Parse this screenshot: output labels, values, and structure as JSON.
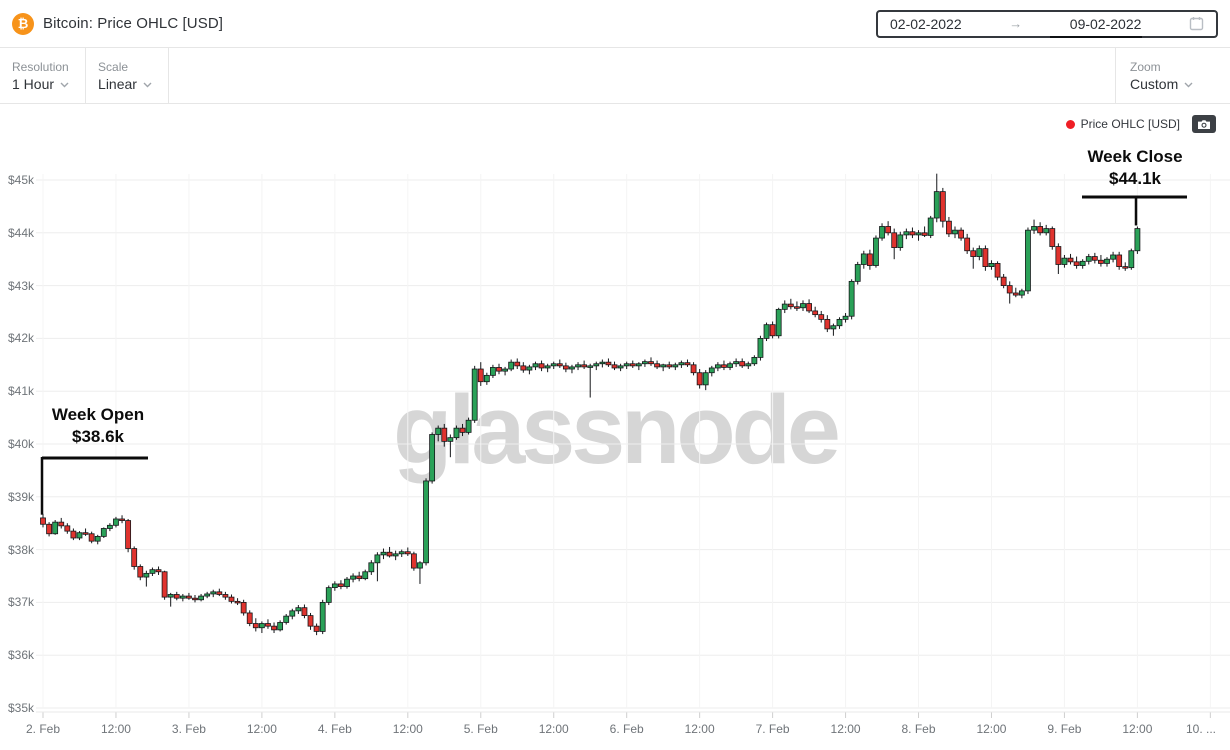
{
  "header": {
    "title": "Bitcoin: Price OHLC [USD]",
    "bitcoin_glyph": "₿",
    "date_range": {
      "start": "02-02-2022",
      "arrow": "→",
      "end": "09-02-2022"
    }
  },
  "toolbar": {
    "resolution": {
      "label": "Resolution",
      "value": "1 Hour"
    },
    "scale": {
      "label": "Scale",
      "value": "Linear"
    },
    "zoom": {
      "label": "Zoom",
      "value": "Custom"
    }
  },
  "legend": {
    "label": "Price OHLC [USD]",
    "dot_color": "#ef1e25"
  },
  "watermark": "glassnode",
  "annotations": {
    "week_open": {
      "line1": "Week Open",
      "line2": "$38.6k"
    },
    "week_close": {
      "line1": "Week Close",
      "line2": "$44.1k"
    }
  },
  "chart_data": {
    "type": "candlestick",
    "title": "Price OHLC [USD]",
    "asset": "Bitcoin",
    "currency": "USD",
    "resolution": "1 Hour",
    "scale": "Linear",
    "week_open_usd_k": 38.6,
    "week_close_usd_k": 44.1,
    "peak_usd_k": 45.1,
    "low_usd_k": 36.4,
    "grid": "horizontal + faint vertical",
    "legend_position": "top-right",
    "colors": {
      "up": "#2aa158",
      "down": "#e0332e",
      "outline": "#15171a"
    },
    "y_axis": {
      "labels": [
        "$45k",
        "$44k",
        "$43k",
        "$42k",
        "$41k",
        "$40k",
        "$39k",
        "$38k",
        "$37k",
        "$36k",
        "$35k"
      ],
      "min_k": 35,
      "max_k": 45
    },
    "x_axis": {
      "labels": [
        "2. Feb",
        "12:00",
        "3. Feb",
        "12:00",
        "4. Feb",
        "12:00",
        "5. Feb",
        "12:00",
        "6. Feb",
        "12:00",
        "7. Feb",
        "12:00",
        "8. Feb",
        "12:00",
        "9. Feb",
        "12:00",
        "10. ..."
      ],
      "start": "2. Feb 00:00",
      "interval_hours": 1
    },
    "candles_unit": "USD thousands, [open, high, low, close] per hour",
    "candles": [
      [
        38.6,
        38.68,
        38.42,
        38.48
      ],
      [
        38.48,
        38.52,
        38.25,
        38.3
      ],
      [
        38.3,
        38.56,
        38.28,
        38.52
      ],
      [
        38.52,
        38.6,
        38.4,
        38.45
      ],
      [
        38.45,
        38.5,
        38.3,
        38.35
      ],
      [
        38.35,
        38.4,
        38.18,
        38.22
      ],
      [
        38.22,
        38.35,
        38.18,
        38.32
      ],
      [
        38.32,
        38.4,
        38.26,
        38.3
      ],
      [
        38.3,
        38.34,
        38.12,
        38.16
      ],
      [
        38.16,
        38.28,
        38.1,
        38.25
      ],
      [
        38.25,
        38.42,
        38.22,
        38.4
      ],
      [
        38.4,
        38.5,
        38.35,
        38.46
      ],
      [
        38.46,
        38.62,
        38.42,
        38.58
      ],
      [
        38.58,
        38.65,
        38.5,
        38.55
      ],
      [
        38.55,
        38.58,
        37.95,
        38.02
      ],
      [
        38.02,
        38.06,
        37.62,
        37.68
      ],
      [
        37.68,
        37.72,
        37.42,
        37.48
      ],
      [
        37.48,
        37.6,
        37.3,
        37.55
      ],
      [
        37.55,
        37.66,
        37.5,
        37.62
      ],
      [
        37.62,
        37.68,
        37.52,
        37.58
      ],
      [
        37.58,
        37.6,
        37.05,
        37.1
      ],
      [
        37.1,
        37.18,
        36.92,
        37.15
      ],
      [
        37.15,
        37.2,
        37.04,
        37.08
      ],
      [
        37.08,
        37.16,
        37.02,
        37.12
      ],
      [
        37.12,
        37.18,
        37.05,
        37.08
      ],
      [
        37.08,
        37.14,
        37.0,
        37.05
      ],
      [
        37.05,
        37.16,
        37.02,
        37.12
      ],
      [
        37.12,
        37.2,
        37.08,
        37.16
      ],
      [
        37.16,
        37.24,
        37.1,
        37.2
      ],
      [
        37.2,
        37.26,
        37.12,
        37.15
      ],
      [
        37.15,
        37.2,
        37.05,
        37.1
      ],
      [
        37.1,
        37.15,
        36.98,
        37.02
      ],
      [
        37.02,
        37.08,
        36.95,
        37.0
      ],
      [
        37.0,
        37.05,
        36.75,
        36.8
      ],
      [
        36.8,
        36.85,
        36.55,
        36.6
      ],
      [
        36.6,
        36.7,
        36.45,
        36.52
      ],
      [
        36.52,
        36.64,
        36.42,
        36.6
      ],
      [
        36.6,
        36.68,
        36.5,
        36.55
      ],
      [
        36.55,
        36.62,
        36.42,
        36.48
      ],
      [
        36.48,
        36.66,
        36.45,
        36.62
      ],
      [
        36.62,
        36.78,
        36.58,
        36.74
      ],
      [
        36.74,
        36.88,
        36.68,
        36.84
      ],
      [
        36.84,
        36.95,
        36.78,
        36.9
      ],
      [
        36.9,
        36.96,
        36.7,
        36.75
      ],
      [
        36.75,
        36.8,
        36.48,
        36.55
      ],
      [
        36.55,
        36.6,
        36.38,
        36.45
      ],
      [
        36.45,
        37.05,
        36.4,
        37.0
      ],
      [
        37.0,
        37.32,
        36.95,
        37.28
      ],
      [
        37.28,
        37.4,
        37.22,
        37.35
      ],
      [
        37.35,
        37.42,
        37.25,
        37.3
      ],
      [
        37.3,
        37.48,
        37.26,
        37.44
      ],
      [
        37.44,
        37.55,
        37.38,
        37.5
      ],
      [
        37.5,
        37.58,
        37.4,
        37.45
      ],
      [
        37.45,
        37.62,
        37.42,
        37.58
      ],
      [
        37.58,
        37.8,
        37.52,
        37.75
      ],
      [
        37.75,
        37.95,
        37.4,
        37.9
      ],
      [
        37.9,
        38.02,
        37.82,
        37.95
      ],
      [
        37.95,
        38.05,
        37.85,
        37.88
      ],
      [
        37.88,
        37.98,
        37.8,
        37.92
      ],
      [
        37.92,
        38.0,
        37.86,
        37.96
      ],
      [
        37.96,
        38.04,
        37.88,
        37.92
      ],
      [
        37.92,
        37.96,
        37.6,
        37.65
      ],
      [
        37.65,
        37.78,
        37.35,
        37.75
      ],
      [
        37.75,
        39.35,
        37.7,
        39.3
      ],
      [
        39.3,
        40.22,
        39.25,
        40.18
      ],
      [
        40.18,
        40.35,
        40.05,
        40.3
      ],
      [
        40.3,
        40.38,
        39.95,
        40.05
      ],
      [
        40.05,
        40.18,
        39.75,
        40.12
      ],
      [
        40.12,
        40.35,
        40.08,
        40.3
      ],
      [
        40.3,
        40.38,
        40.15,
        40.22
      ],
      [
        40.22,
        40.5,
        40.18,
        40.45
      ],
      [
        40.45,
        41.48,
        40.4,
        41.42
      ],
      [
        41.42,
        41.55,
        41.1,
        41.18
      ],
      [
        41.18,
        41.35,
        41.12,
        41.3
      ],
      [
        41.3,
        41.5,
        41.25,
        41.45
      ],
      [
        41.45,
        41.52,
        41.32,
        41.38
      ],
      [
        41.38,
        41.46,
        41.3,
        41.42
      ],
      [
        41.42,
        41.6,
        41.38,
        41.55
      ],
      [
        41.55,
        41.62,
        41.42,
        41.48
      ],
      [
        41.48,
        41.55,
        41.35,
        41.4
      ],
      [
        41.4,
        41.5,
        41.32,
        41.46
      ],
      [
        41.46,
        41.56,
        41.4,
        41.52
      ],
      [
        41.52,
        41.58,
        41.38,
        41.44
      ],
      [
        41.44,
        41.52,
        41.36,
        41.48
      ],
      [
        41.48,
        41.56,
        41.42,
        41.52
      ],
      [
        41.52,
        41.6,
        41.44,
        41.48
      ],
      [
        41.48,
        41.54,
        41.36,
        41.42
      ],
      [
        41.42,
        41.5,
        41.34,
        41.46
      ],
      [
        41.46,
        41.55,
        41.4,
        41.5
      ],
      [
        41.5,
        41.58,
        41.42,
        41.46
      ],
      [
        41.46,
        41.52,
        40.88,
        41.48
      ],
      [
        41.48,
        41.56,
        41.4,
        41.52
      ],
      [
        41.52,
        41.6,
        41.45,
        41.55
      ],
      [
        41.55,
        41.62,
        41.46,
        41.5
      ],
      [
        41.5,
        41.56,
        41.4,
        41.44
      ],
      [
        41.44,
        41.52,
        41.38,
        41.48
      ],
      [
        41.48,
        41.56,
        41.42,
        41.52
      ],
      [
        41.52,
        41.58,
        41.44,
        41.48
      ],
      [
        41.48,
        41.55,
        41.4,
        41.52
      ],
      [
        41.52,
        41.6,
        41.46,
        41.56
      ],
      [
        41.56,
        41.64,
        41.48,
        41.52
      ],
      [
        41.52,
        41.58,
        41.42,
        41.46
      ],
      [
        41.46,
        41.52,
        41.38,
        41.5
      ],
      [
        41.5,
        41.56,
        41.42,
        41.46
      ],
      [
        41.46,
        41.54,
        41.4,
        41.5
      ],
      [
        41.5,
        41.58,
        41.44,
        41.54
      ],
      [
        41.54,
        41.6,
        41.46,
        41.5
      ],
      [
        41.5,
        41.55,
        41.3,
        41.35
      ],
      [
        41.35,
        41.42,
        41.05,
        41.12
      ],
      [
        41.12,
        41.4,
        41.02,
        41.35
      ],
      [
        41.35,
        41.48,
        41.28,
        41.44
      ],
      [
        41.44,
        41.55,
        41.38,
        41.5
      ],
      [
        41.5,
        41.58,
        41.4,
        41.45
      ],
      [
        41.45,
        41.56,
        41.4,
        41.52
      ],
      [
        41.52,
        41.62,
        41.46,
        41.56
      ],
      [
        41.56,
        41.62,
        41.44,
        41.48
      ],
      [
        41.48,
        41.56,
        41.42,
        41.52
      ],
      [
        41.52,
        41.68,
        41.48,
        41.64
      ],
      [
        41.64,
        42.05,
        41.58,
        42.0
      ],
      [
        42.0,
        42.3,
        41.95,
        42.26
      ],
      [
        42.26,
        42.32,
        42.0,
        42.05
      ],
      [
        42.05,
        42.58,
        42.0,
        42.55
      ],
      [
        42.55,
        42.72,
        42.48,
        42.65
      ],
      [
        42.65,
        42.75,
        42.55,
        42.6
      ],
      [
        42.6,
        42.7,
        42.52,
        42.58
      ],
      [
        42.58,
        42.72,
        42.52,
        42.66
      ],
      [
        42.66,
        42.74,
        42.48,
        42.52
      ],
      [
        42.52,
        42.6,
        42.4,
        42.45
      ],
      [
        42.45,
        42.52,
        42.3,
        42.36
      ],
      [
        42.36,
        42.44,
        42.12,
        42.18
      ],
      [
        42.18,
        42.28,
        42.05,
        42.24
      ],
      [
        42.24,
        42.4,
        42.18,
        42.36
      ],
      [
        42.36,
        42.48,
        42.3,
        42.42
      ],
      [
        42.42,
        43.12,
        42.36,
        43.08
      ],
      [
        43.08,
        43.45,
        43.02,
        43.4
      ],
      [
        43.4,
        43.66,
        43.32,
        43.6
      ],
      [
        43.6,
        43.68,
        43.3,
        43.38
      ],
      [
        43.38,
        43.95,
        43.34,
        43.9
      ],
      [
        43.9,
        44.18,
        43.85,
        44.12
      ],
      [
        44.12,
        44.22,
        43.95,
        44.0
      ],
      [
        44.0,
        44.08,
        43.5,
        43.72
      ],
      [
        43.72,
        44.02,
        43.66,
        43.96
      ],
      [
        43.96,
        44.08,
        43.88,
        44.02
      ],
      [
        44.02,
        44.1,
        43.9,
        43.96
      ],
      [
        43.96,
        44.05,
        43.85,
        44.0
      ],
      [
        44.0,
        44.12,
        43.92,
        43.95
      ],
      [
        43.95,
        44.32,
        43.9,
        44.28
      ],
      [
        44.28,
        45.12,
        44.2,
        44.78
      ],
      [
        44.78,
        44.85,
        44.1,
        44.22
      ],
      [
        44.22,
        44.3,
        43.92,
        43.98
      ],
      [
        43.98,
        44.12,
        43.9,
        44.05
      ],
      [
        44.05,
        44.1,
        43.85,
        43.9
      ],
      [
        43.9,
        43.98,
        43.6,
        43.66
      ],
      [
        43.66,
        43.72,
        43.32,
        43.55
      ],
      [
        43.55,
        43.76,
        43.48,
        43.7
      ],
      [
        43.7,
        43.76,
        43.28,
        43.36
      ],
      [
        43.36,
        43.48,
        43.3,
        43.42
      ],
      [
        43.42,
        43.46,
        43.1,
        43.16
      ],
      [
        43.16,
        43.22,
        42.95,
        43.0
      ],
      [
        43.0,
        43.08,
        42.66,
        42.86
      ],
      [
        42.86,
        42.96,
        42.78,
        42.82
      ],
      [
        42.82,
        42.94,
        42.76,
        42.9
      ],
      [
        42.9,
        44.1,
        42.84,
        44.05
      ],
      [
        44.05,
        44.25,
        43.98,
        44.12
      ],
      [
        44.12,
        44.2,
        43.95,
        44.0
      ],
      [
        44.0,
        44.15,
        43.95,
        44.08
      ],
      [
        44.08,
        44.12,
        43.68,
        43.74
      ],
      [
        43.74,
        43.8,
        43.22,
        43.4
      ],
      [
        43.4,
        43.58,
        43.34,
        43.52
      ],
      [
        43.52,
        43.6,
        43.4,
        43.45
      ],
      [
        43.45,
        43.55,
        43.32,
        43.38
      ],
      [
        43.38,
        43.5,
        43.32,
        43.46
      ],
      [
        43.46,
        43.6,
        43.4,
        43.55
      ],
      [
        43.55,
        43.62,
        43.42,
        43.48
      ],
      [
        43.48,
        43.58,
        43.36,
        43.42
      ],
      [
        43.42,
        43.54,
        43.36,
        43.5
      ],
      [
        43.5,
        43.64,
        43.44,
        43.58
      ],
      [
        43.58,
        43.64,
        43.3,
        43.36
      ],
      [
        43.36,
        43.44,
        43.28,
        43.34
      ],
      [
        43.34,
        43.7,
        43.3,
        43.66
      ],
      [
        43.66,
        44.12,
        43.6,
        44.08
      ]
    ]
  }
}
